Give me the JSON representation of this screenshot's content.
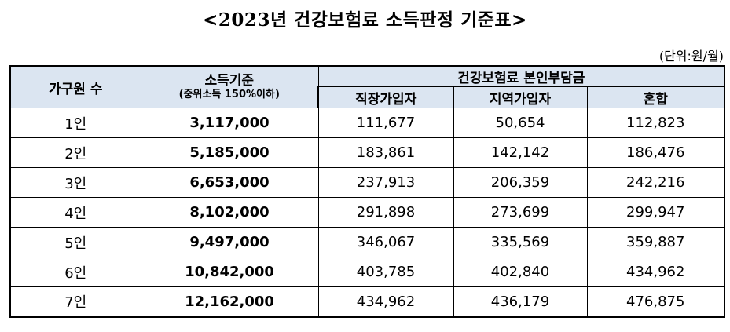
{
  "title": "<2023년 건강보험료 소득판정 기준표>",
  "unit": "(단위:원/월)",
  "headers": {
    "household": "가구원 수",
    "income_std": "소득기준",
    "income_note": "(중위소득 150%이하)",
    "premium": "건강보험료 본인부담금",
    "workplace": "직장가입자",
    "regional": "지역가입자",
    "mixed": "혼합"
  },
  "rows": [
    {
      "size": "1인",
      "income": "3,117,000",
      "workplace": "111,677",
      "regional": "50,654",
      "mixed": "112,823"
    },
    {
      "size": "2인",
      "income": "5,185,000",
      "workplace": "183,861",
      "regional": "142,142",
      "mixed": "186,476"
    },
    {
      "size": "3인",
      "income": "6,653,000",
      "workplace": "237,913",
      "regional": "206,359",
      "mixed": "242,216"
    },
    {
      "size": "4인",
      "income": "8,102,000",
      "workplace": "291,898",
      "regional": "273,699",
      "mixed": "299,947"
    },
    {
      "size": "5인",
      "income": "9,497,000",
      "workplace": "346,067",
      "regional": "335,569",
      "mixed": "359,887"
    },
    {
      "size": "6인",
      "income": "10,842,000",
      "workplace": "403,785",
      "regional": "402,840",
      "mixed": "434,962"
    },
    {
      "size": "7인",
      "income": "12,162,000",
      "workplace": "434,962",
      "regional": "436,179",
      "mixed": "476,875"
    }
  ]
}
